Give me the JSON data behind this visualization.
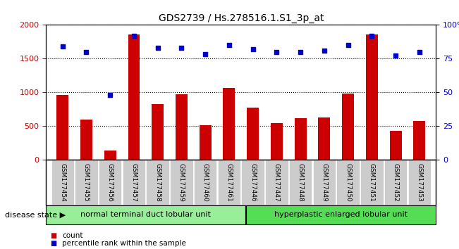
{
  "title": "GDS2739 / Hs.278516.1.S1_3p_at",
  "categories": [
    "GSM177454",
    "GSM177455",
    "GSM177456",
    "GSM177457",
    "GSM177458",
    "GSM177459",
    "GSM177460",
    "GSM177461",
    "GSM177446",
    "GSM177447",
    "GSM177448",
    "GSM177449",
    "GSM177450",
    "GSM177451",
    "GSM177452",
    "GSM177453"
  ],
  "counts": [
    960,
    590,
    130,
    1860,
    820,
    970,
    510,
    1060,
    770,
    540,
    615,
    620,
    980,
    1860,
    420,
    570
  ],
  "percentiles": [
    84,
    80,
    48,
    92,
    83,
    83,
    78,
    85,
    82,
    80,
    80,
    81,
    85,
    92,
    77,
    80
  ],
  "group1_label": "normal terminal duct lobular unit",
  "group2_label": "hyperplastic enlarged lobular unit",
  "group1_count": 8,
  "group2_count": 8,
  "disease_state_label": "disease state",
  "ylim_left": [
    0,
    2000
  ],
  "ylim_right": [
    0,
    100
  ],
  "yticks_left": [
    0,
    500,
    1000,
    1500,
    2000
  ],
  "yticks_right": [
    0,
    25,
    50,
    75,
    100
  ],
  "bar_color": "#cc0000",
  "dot_color": "#0000cc",
  "group1_color": "#99ee99",
  "group2_color": "#55dd55",
  "tick_bg_color": "#cccccc",
  "legend_count_color": "#cc0000",
  "legend_pct_color": "#0000cc"
}
